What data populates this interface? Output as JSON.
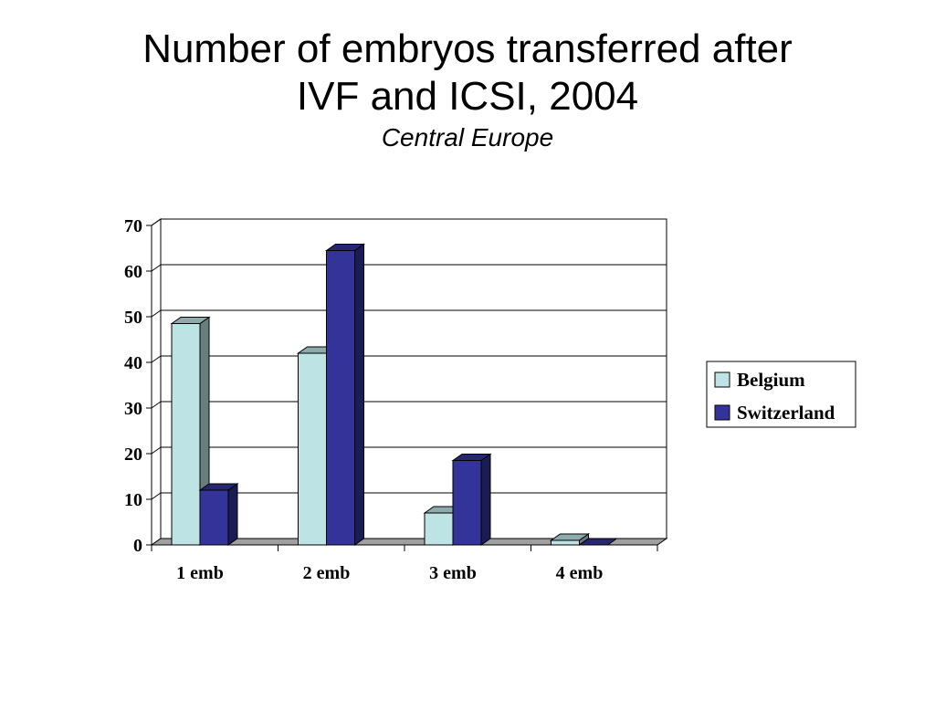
{
  "title_lines": [
    "Number of embryos transferred after",
    "IVF and ICSI, 2004"
  ],
  "subtitle": "Central Europe",
  "chart_data": {
    "type": "bar",
    "variant": "3d-clustered",
    "categories": [
      "1 emb",
      "2 emb",
      "3 emb",
      "4 emb"
    ],
    "series": [
      {
        "name": "Belgium",
        "values": [
          48.5,
          42,
          7,
          1
        ],
        "color": "#bde3e4"
      },
      {
        "name": "Switzerland",
        "values": [
          12,
          64.5,
          18.5,
          0
        ],
        "color": "#333399"
      }
    ],
    "ylim": [
      0,
      70
    ],
    "yticks": [
      0,
      10,
      20,
      30,
      40,
      50,
      60,
      70
    ],
    "grid": true,
    "legend_position": "right"
  }
}
